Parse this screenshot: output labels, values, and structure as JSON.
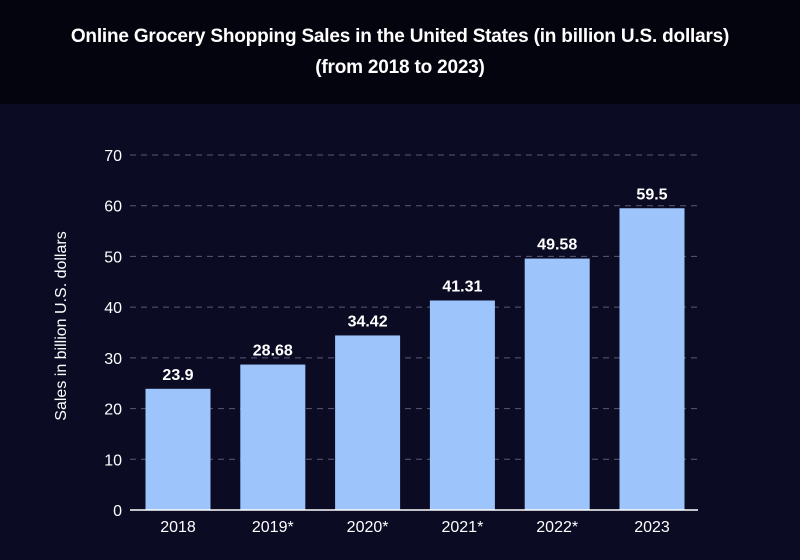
{
  "title_lines": [
    "Online Grocery Shopping Sales in the United States (in billion U.S. dollars)",
    "(from 2018 to 2023)"
  ],
  "colors": {
    "bar": "#9dc4fb",
    "gridline": "#5a5a78",
    "axis": "#ffffff"
  },
  "chart_data": {
    "type": "bar",
    "title": "Online Grocery Shopping Sales in the United States (in billion U.S. dollars) (from 2018 to 2023)",
    "categories": [
      "2018",
      "2019*",
      "2020*",
      "2021*",
      "2022*",
      "2023"
    ],
    "values": [
      23.9,
      28.68,
      34.42,
      41.31,
      49.58,
      59.5
    ],
    "data_labels": [
      "23.9",
      "28.68",
      "34.42",
      "41.31",
      "49.58",
      "59.5"
    ],
    "xlabel": "",
    "ylabel": "Sales in billion U.S. dollars",
    "ylim": [
      0,
      70
    ],
    "yticks": [
      0,
      10,
      20,
      30,
      40,
      50,
      60,
      70
    ],
    "grid": true
  }
}
